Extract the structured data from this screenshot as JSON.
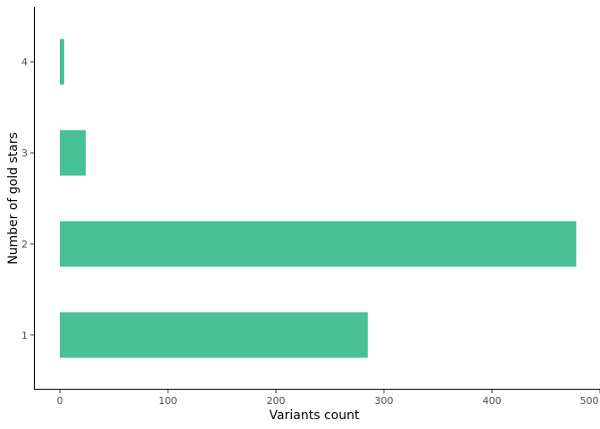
{
  "chart_data": {
    "type": "bar",
    "orientation": "horizontal",
    "categories": [
      "1",
      "2",
      "3",
      "4"
    ],
    "values": [
      285,
      478,
      24,
      4
    ],
    "title": "",
    "xlabel": "Variants count",
    "ylabel": "Number of gold stars",
    "xlim": [
      -24,
      500
    ],
    "xticks": [
      0,
      100,
      200,
      300,
      400,
      500
    ],
    "grid": false,
    "legend": "none",
    "bar_color": "#48C196"
  }
}
